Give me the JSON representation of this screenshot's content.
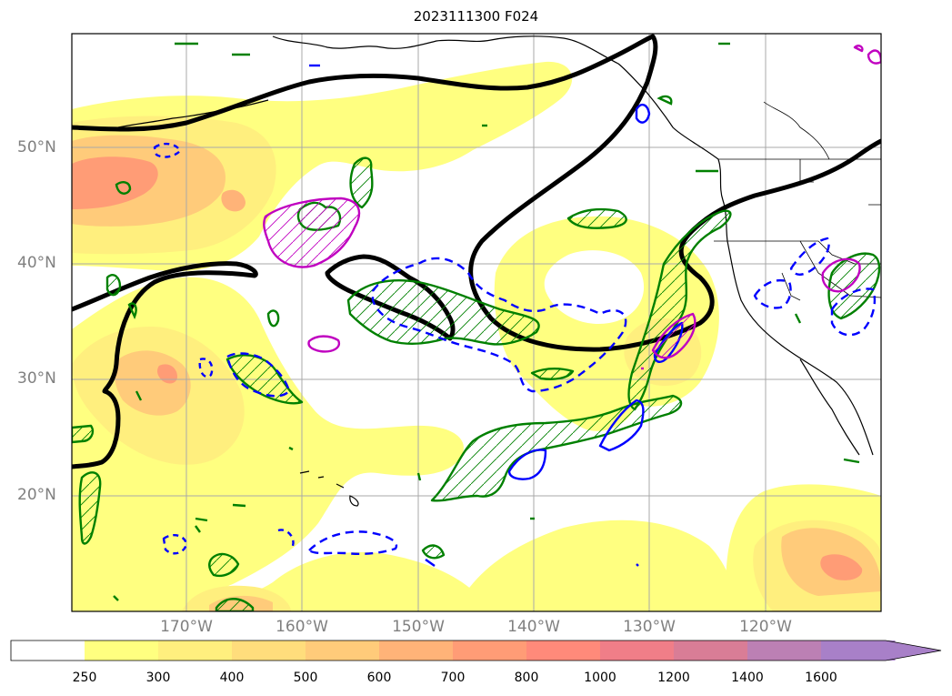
{
  "title": "2023111300 F024",
  "lat_labels": [
    "50°N",
    "40°N",
    "30°N",
    "20°N"
  ],
  "lon_labels": [
    "170°W",
    "160°W",
    "150°W",
    "140°W",
    "130°W",
    "120°W"
  ],
  "colorbar": {
    "ticks": [
      "250",
      "300",
      "400",
      "500",
      "600",
      "700",
      "800",
      "1000",
      "1200",
      "1400",
      "1600"
    ],
    "colors": [
      "#ffff80",
      "#ffef7e",
      "#ffdd7c",
      "#ffcb7a",
      "#ffb378",
      "#ff9c76",
      "#ff8a7a",
      "#f07e88",
      "#d97d96",
      "#bc80b4",
      "#a880c8"
    ],
    "below_color": "#ffffff",
    "extend": "max"
  },
  "contour_colors": {
    "heavy": "#000000",
    "green": "#008000",
    "blue": "#0000ff",
    "magenta": "#c000c0"
  }
}
